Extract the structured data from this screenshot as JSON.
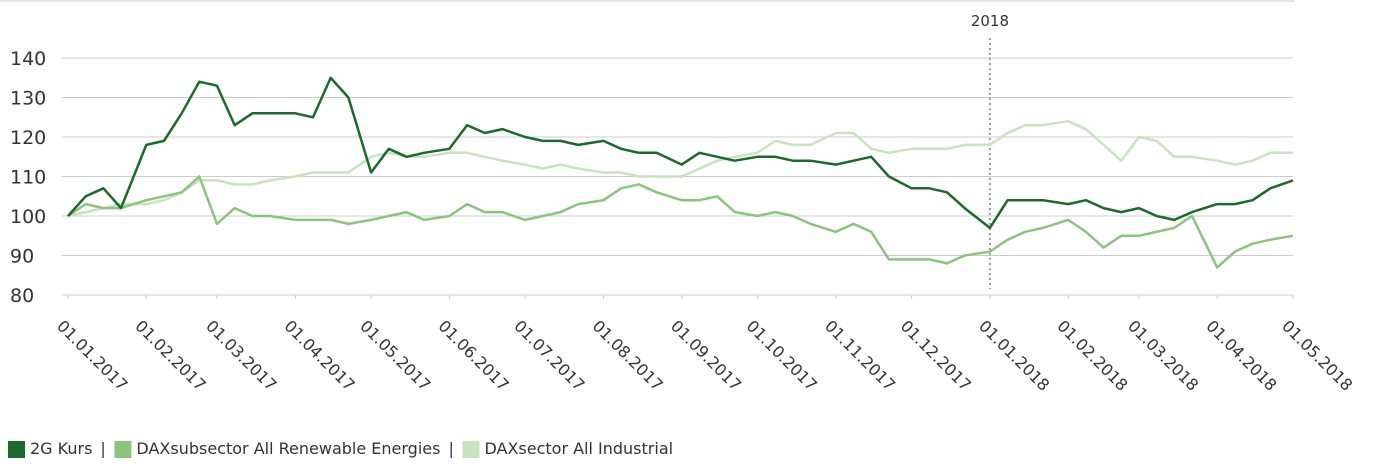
{
  "chart_data": {
    "type": "line",
    "x": [
      "01.01.2017",
      "08.01.2017",
      "15.01.2017",
      "22.01.2017",
      "01.02.2017",
      "08.02.2017",
      "15.02.2017",
      "22.02.2017",
      "01.03.2017",
      "08.03.2017",
      "15.03.2017",
      "22.03.2017",
      "01.04.2017",
      "08.04.2017",
      "15.04.2017",
      "22.04.2017",
      "01.05.2017",
      "08.05.2017",
      "15.05.2017",
      "22.05.2017",
      "01.06.2017",
      "08.06.2017",
      "15.06.2017",
      "22.06.2017",
      "01.07.2017",
      "08.07.2017",
      "15.07.2017",
      "22.07.2017",
      "01.08.2017",
      "08.08.2017",
      "15.08.2017",
      "22.08.2017",
      "01.09.2017",
      "08.09.2017",
      "15.09.2017",
      "22.09.2017",
      "01.10.2017",
      "08.10.2017",
      "15.10.2017",
      "22.10.2017",
      "01.11.2017",
      "08.11.2017",
      "15.11.2017",
      "22.11.2017",
      "01.12.2017",
      "08.12.2017",
      "15.12.2017",
      "22.12.2017",
      "01.01.2018",
      "08.01.2018",
      "15.01.2018",
      "22.01.2018",
      "01.02.2018",
      "08.02.2018",
      "15.02.2018",
      "22.02.2018",
      "01.03.2018",
      "08.03.2018",
      "15.03.2018",
      "22.03.2018",
      "01.04.2018",
      "08.04.2018",
      "15.04.2018",
      "22.04.2018",
      "01.05.2018"
    ],
    "series": [
      {
        "name": "DAXsector All Industrial",
        "color": "#c9e3bf",
        "values": [
          100,
          101,
          102,
          103,
          103,
          104,
          106,
          109,
          109,
          108,
          108,
          109,
          110,
          111,
          111,
          111,
          115,
          116,
          115,
          115,
          116,
          116,
          115,
          114,
          113,
          112,
          113,
          112,
          111,
          111,
          110,
          110,
          110,
          112,
          114,
          115,
          116,
          119,
          118,
          118,
          121,
          121,
          117,
          116,
          117,
          117,
          117,
          118,
          118,
          121,
          123,
          123,
          124,
          122,
          118,
          114,
          120,
          119,
          115,
          115,
          114,
          113,
          114,
          116,
          116
        ]
      },
      {
        "name": "DAXsubsector All Renewable Energies",
        "color": "#8cc47e",
        "values": [
          100,
          103,
          102,
          102,
          104,
          105,
          106,
          110,
          98,
          102,
          100,
          100,
          99,
          99,
          99,
          98,
          99,
          100,
          101,
          99,
          100,
          103,
          101,
          101,
          99,
          100,
          101,
          103,
          104,
          107,
          108,
          106,
          104,
          104,
          105,
          101,
          100,
          101,
          100,
          98,
          96,
          98,
          96,
          89,
          89,
          89,
          88,
          90,
          91,
          94,
          96,
          97,
          99,
          96,
          92,
          95,
          95,
          96,
          97,
          100,
          87,
          91,
          93,
          94,
          95
        ]
      },
      {
        "name": "2G Kurs",
        "color": "#1a6b2a",
        "values": [
          100,
          105,
          107,
          102,
          118,
          119,
          126,
          134,
          133,
          123,
          126,
          126,
          126,
          125,
          135,
          130,
          111,
          117,
          115,
          116,
          117,
          123,
          121,
          122,
          120,
          119,
          119,
          118,
          119,
          117,
          116,
          116,
          113,
          116,
          115,
          114,
          115,
          115,
          114,
          114,
          113,
          114,
          115,
          110,
          107,
          107,
          106,
          102,
          97,
          104,
          104,
          104,
          103,
          104,
          102,
          101,
          102,
          100,
          99,
          101,
          103,
          103,
          104,
          107,
          109
        ]
      }
    ],
    "legend": [
      "2G Kurs",
      "DAXsubsector All Renewable Energies",
      "DAXsector All Industrial"
    ],
    "xlim": [
      "01.01.2017",
      "01.05.2018"
    ],
    "xticks": [
      "01.01.2017",
      "01.02.2017",
      "01.03.2017",
      "01.04.2017",
      "01.05.2017",
      "01.06.2017",
      "01.07.2017",
      "01.08.2017",
      "01.09.2017",
      "01.10.2017",
      "01.11.2017",
      "01.12.2017",
      "01.01.2018",
      "01.02.2018",
      "01.03.2018",
      "01.04.2018",
      "01.05.2018"
    ],
    "ylim": [
      80,
      140
    ],
    "yticks": [
      80,
      90,
      100,
      110,
      120,
      130,
      140
    ],
    "grid": true,
    "annotation": {
      "text": "2018",
      "x": "01.01.2018"
    }
  }
}
